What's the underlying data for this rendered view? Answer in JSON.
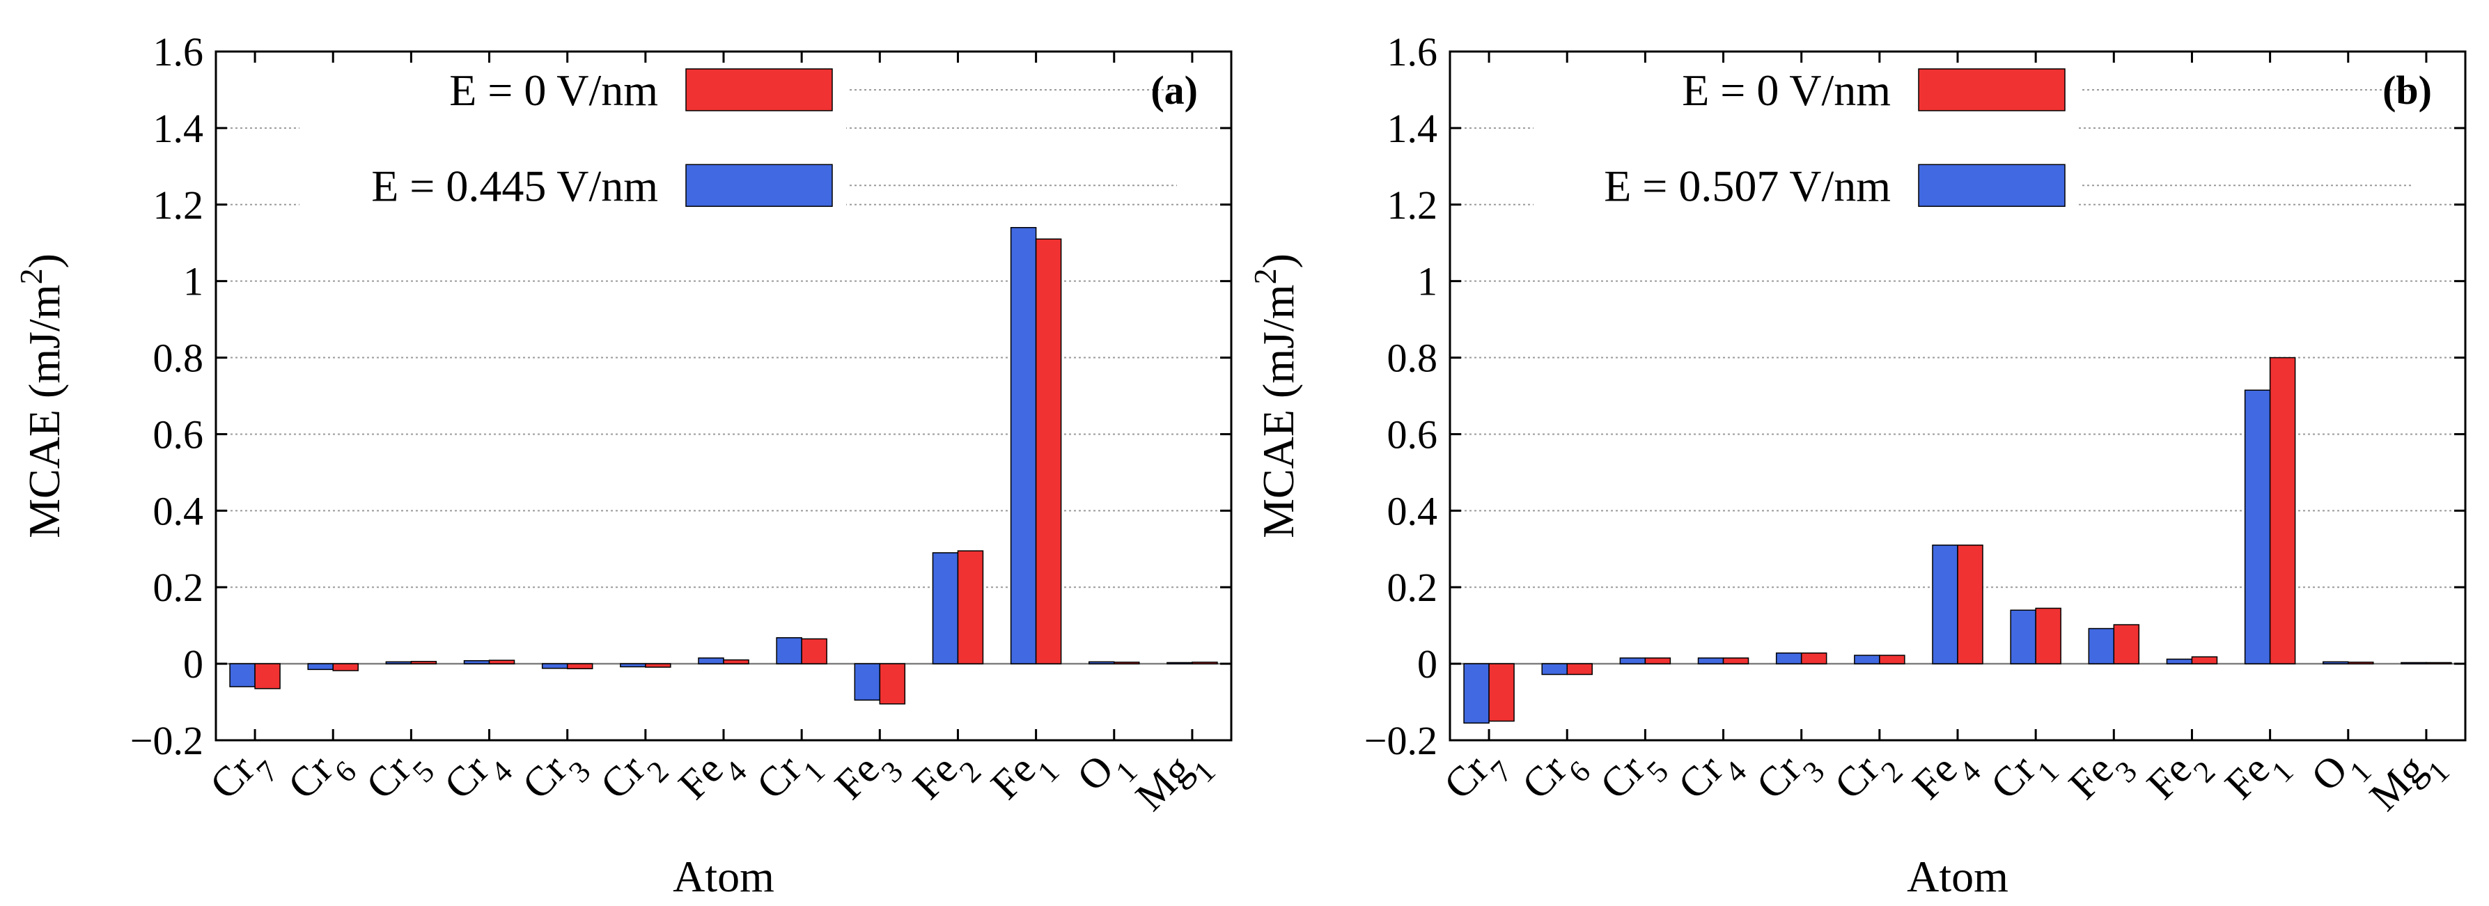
{
  "colors": {
    "series_a": "#f03232",
    "series_b": "#4169e1",
    "grid": "#9a9a9a"
  },
  "chart_data": [
    {
      "type": "bar",
      "panel_label": "(a)",
      "xlabel": "Atom",
      "ylabel": "MCAE (mJ/m",
      "ylabel_sup": "2",
      "ylabel_close": ")",
      "ylim": [
        -0.2,
        1.6
      ],
      "yticks": [
        "−0.2",
        "0",
        "0.2",
        "0.4",
        "0.6",
        "0.8",
        "1",
        "1.2",
        "1.4",
        "1.6"
      ],
      "ytick_values": [
        -0.2,
        0,
        0.2,
        0.4,
        0.6,
        0.8,
        1.0,
        1.2,
        1.4,
        1.6
      ],
      "grid": true,
      "categories": [
        {
          "base": "Cr",
          "sub": "7"
        },
        {
          "base": "Cr",
          "sub": "6"
        },
        {
          "base": "Cr",
          "sub": "5"
        },
        {
          "base": "Cr",
          "sub": "4"
        },
        {
          "base": "Cr",
          "sub": "3"
        },
        {
          "base": "Cr",
          "sub": "2"
        },
        {
          "base": "Fe",
          "sub": "4"
        },
        {
          "base": "Cr",
          "sub": "1"
        },
        {
          "base": "Fe",
          "sub": "3"
        },
        {
          "base": "Fe",
          "sub": "2"
        },
        {
          "base": "Fe",
          "sub": "1"
        },
        {
          "base": "O",
          "sub": "1"
        },
        {
          "base": "Mg",
          "sub": "1"
        }
      ],
      "series": [
        {
          "name": "E = 0.445 V/nm",
          "color": "#4169e1",
          "values": [
            -0.06,
            -0.015,
            0.005,
            0.008,
            -0.012,
            -0.008,
            0.015,
            0.068,
            -0.095,
            0.29,
            1.14,
            0.005,
            0.003
          ]
        },
        {
          "name": "E = 0 V/nm",
          "color": "#f03232",
          "values": [
            -0.065,
            -0.018,
            0.006,
            0.009,
            -0.013,
            -0.009,
            0.01,
            0.065,
            -0.105,
            0.295,
            1.11,
            0.004,
            0.004
          ]
        }
      ],
      "legend": [
        {
          "label": "E = 0 V/nm",
          "color": "#f03232"
        },
        {
          "label": "E = 0.445 V/nm",
          "color": "#4169e1"
        }
      ]
    },
    {
      "type": "bar",
      "panel_label": "(b)",
      "xlabel": "Atom",
      "ylabel": "MCAE (mJ/m",
      "ylabel_sup": "2",
      "ylabel_close": ")",
      "ylim": [
        -0.2,
        1.6
      ],
      "yticks": [
        "−0.2",
        "0",
        "0.2",
        "0.4",
        "0.6",
        "0.8",
        "1",
        "1.2",
        "1.4",
        "1.6"
      ],
      "ytick_values": [
        -0.2,
        0,
        0.2,
        0.4,
        0.6,
        0.8,
        1.0,
        1.2,
        1.4,
        1.6
      ],
      "grid": true,
      "categories": [
        {
          "base": "Cr",
          "sub": "7"
        },
        {
          "base": "Cr",
          "sub": "6"
        },
        {
          "base": "Cr",
          "sub": "5"
        },
        {
          "base": "Cr",
          "sub": "4"
        },
        {
          "base": "Cr",
          "sub": "3"
        },
        {
          "base": "Cr",
          "sub": "2"
        },
        {
          "base": "Fe",
          "sub": "4"
        },
        {
          "base": "Cr",
          "sub": "1"
        },
        {
          "base": "Fe",
          "sub": "3"
        },
        {
          "base": "Fe",
          "sub": "2"
        },
        {
          "base": "Fe",
          "sub": "1"
        },
        {
          "base": "O",
          "sub": "1"
        },
        {
          "base": "Mg",
          "sub": "1"
        }
      ],
      "series": [
        {
          "name": "E = 0.507 V/nm",
          "color": "#4169e1",
          "values": [
            -0.155,
            -0.028,
            0.015,
            0.015,
            0.028,
            0.022,
            0.31,
            0.14,
            0.092,
            0.012,
            0.715,
            0.005,
            0.003
          ]
        },
        {
          "name": "E = 0 V/nm",
          "color": "#f03232",
          "values": [
            -0.15,
            -0.028,
            0.015,
            0.015,
            0.028,
            0.022,
            0.31,
            0.145,
            0.102,
            0.018,
            0.8,
            0.004,
            0.003
          ]
        }
      ],
      "legend": [
        {
          "label": "E = 0 V/nm",
          "color": "#f03232"
        },
        {
          "label": "E = 0.507 V/nm",
          "color": "#4169e1"
        }
      ]
    }
  ]
}
